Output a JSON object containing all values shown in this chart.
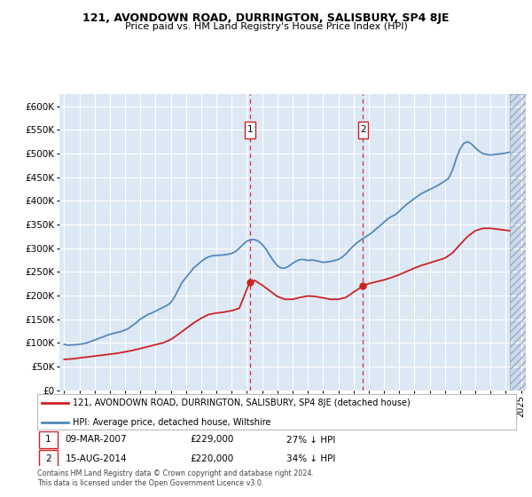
{
  "title": "121, AVONDOWN ROAD, DURRINGTON, SALISBURY, SP4 8JE",
  "subtitle": "Price paid vs. HM Land Registry's House Price Index (HPI)",
  "ylim": [
    0,
    625000
  ],
  "yticks": [
    0,
    50000,
    100000,
    150000,
    200000,
    250000,
    300000,
    350000,
    400000,
    450000,
    500000,
    550000,
    600000
  ],
  "ytick_labels": [
    "£0",
    "£50K",
    "£100K",
    "£150K",
    "£200K",
    "£250K",
    "£300K",
    "£350K",
    "£400K",
    "£450K",
    "£500K",
    "£550K",
    "£600K"
  ],
  "background_color": "#ffffff",
  "plot_bg_color": "#dde8f5",
  "grid_color": "#ffffff",
  "red_line_label": "121, AVONDOWN ROAD, DURRINGTON, SALISBURY, SP4 8JE (detached house)",
  "blue_line_label": "HPI: Average price, detached house, Wiltshire",
  "footer": "Contains HM Land Registry data © Crown copyright and database right 2024.\nThis data is licensed under the Open Government Licence v3.0.",
  "hpi_years": [
    1995.0,
    1995.25,
    1995.5,
    1995.75,
    1996.0,
    1996.25,
    1996.5,
    1996.75,
    1997.0,
    1997.25,
    1997.5,
    1997.75,
    1998.0,
    1998.25,
    1998.5,
    1998.75,
    1999.0,
    1999.25,
    1999.5,
    1999.75,
    2000.0,
    2000.25,
    2000.5,
    2000.75,
    2001.0,
    2001.25,
    2001.5,
    2001.75,
    2002.0,
    2002.25,
    2002.5,
    2002.75,
    2003.0,
    2003.25,
    2003.5,
    2003.75,
    2004.0,
    2004.25,
    2004.5,
    2004.75,
    2005.0,
    2005.25,
    2005.5,
    2005.75,
    2006.0,
    2006.25,
    2006.5,
    2006.75,
    2007.0,
    2007.25,
    2007.5,
    2007.75,
    2008.0,
    2008.25,
    2008.5,
    2008.75,
    2009.0,
    2009.25,
    2009.5,
    2009.75,
    2010.0,
    2010.25,
    2010.5,
    2010.75,
    2011.0,
    2011.25,
    2011.5,
    2011.75,
    2012.0,
    2012.25,
    2012.5,
    2012.75,
    2013.0,
    2013.25,
    2013.5,
    2013.75,
    2014.0,
    2014.25,
    2014.5,
    2014.75,
    2015.0,
    2015.25,
    2015.5,
    2015.75,
    2016.0,
    2016.25,
    2016.5,
    2016.75,
    2017.0,
    2017.25,
    2017.5,
    2017.75,
    2018.0,
    2018.25,
    2018.5,
    2018.75,
    2019.0,
    2019.25,
    2019.5,
    2019.75,
    2020.0,
    2020.25,
    2020.5,
    2020.75,
    2021.0,
    2021.25,
    2021.5,
    2021.75,
    2022.0,
    2022.25,
    2022.5,
    2022.75,
    2023.0,
    2023.25,
    2023.5,
    2023.75,
    2024.0,
    2024.25
  ],
  "hpi_values": [
    97000,
    95000,
    95500,
    96000,
    97000,
    98000,
    100000,
    103000,
    106000,
    109000,
    112000,
    115000,
    118000,
    120000,
    122000,
    124000,
    127000,
    131000,
    137000,
    143000,
    150000,
    155000,
    160000,
    163000,
    167000,
    171000,
    175000,
    179000,
    185000,
    197000,
    213000,
    228000,
    238000,
    248000,
    258000,
    265000,
    272000,
    278000,
    282000,
    284000,
    285000,
    285000,
    286000,
    287000,
    289000,
    293000,
    300000,
    308000,
    315000,
    318000,
    318000,
    315000,
    308000,
    298000,
    285000,
    273000,
    263000,
    258000,
    258000,
    262000,
    268000,
    273000,
    276000,
    276000,
    274000,
    275000,
    274000,
    272000,
    270000,
    271000,
    272000,
    274000,
    276000,
    281000,
    288000,
    297000,
    305000,
    312000,
    318000,
    323000,
    328000,
    334000,
    341000,
    348000,
    355000,
    362000,
    367000,
    371000,
    378000,
    386000,
    393000,
    399000,
    405000,
    411000,
    416000,
    420000,
    424000,
    428000,
    432000,
    437000,
    442000,
    448000,
    465000,
    490000,
    510000,
    522000,
    525000,
    520000,
    512000,
    505000,
    500000,
    498000,
    497000,
    498000,
    499000,
    500000,
    501000,
    503000
  ],
  "property_years": [
    1995.0,
    1995.5,
    1996.0,
    1996.5,
    1997.0,
    1997.5,
    1998.0,
    1998.5,
    1999.0,
    1999.5,
    2000.0,
    2000.5,
    2001.0,
    2001.5,
    2002.0,
    2002.5,
    2003.0,
    2003.5,
    2004.0,
    2004.5,
    2005.0,
    2005.5,
    2006.0,
    2006.5,
    2007.19,
    2007.5,
    2008.0,
    2008.5,
    2009.0,
    2009.5,
    2010.0,
    2010.5,
    2011.0,
    2011.5,
    2012.0,
    2012.5,
    2013.0,
    2013.5,
    2014.0,
    2014.62,
    2015.0,
    2015.5,
    2016.0,
    2016.5,
    2017.0,
    2017.5,
    2018.0,
    2018.5,
    2019.0,
    2019.5,
    2020.0,
    2020.5,
    2021.0,
    2021.5,
    2022.0,
    2022.5,
    2023.0,
    2023.5,
    2024.0,
    2024.25
  ],
  "property_values": [
    65000,
    66000,
    68000,
    70000,
    72000,
    74000,
    76000,
    78000,
    81000,
    84000,
    88000,
    92000,
    96000,
    100000,
    107000,
    118000,
    130000,
    142000,
    152000,
    160000,
    163000,
    165000,
    168000,
    173000,
    229000,
    232000,
    222000,
    210000,
    198000,
    192000,
    192000,
    196000,
    199000,
    198000,
    195000,
    192000,
    192000,
    196000,
    207000,
    220000,
    225000,
    229000,
    233000,
    238000,
    244000,
    251000,
    258000,
    264000,
    269000,
    274000,
    279000,
    290000,
    308000,
    325000,
    337000,
    342000,
    342000,
    340000,
    338000,
    337000
  ],
  "xticks": [
    1995,
    1996,
    1997,
    1998,
    1999,
    2000,
    2001,
    2002,
    2003,
    2004,
    2005,
    2006,
    2007,
    2008,
    2009,
    2010,
    2011,
    2012,
    2013,
    2014,
    2015,
    2016,
    2017,
    2018,
    2019,
    2020,
    2021,
    2022,
    2023,
    2024,
    2025
  ],
  "xlim": [
    1994.7,
    2025.3
  ],
  "sale1_year": 2007.19,
  "sale1_price": 229000,
  "sale2_year": 2014.62,
  "sale2_price": 220000,
  "hatched_start_year": 2024.25
}
